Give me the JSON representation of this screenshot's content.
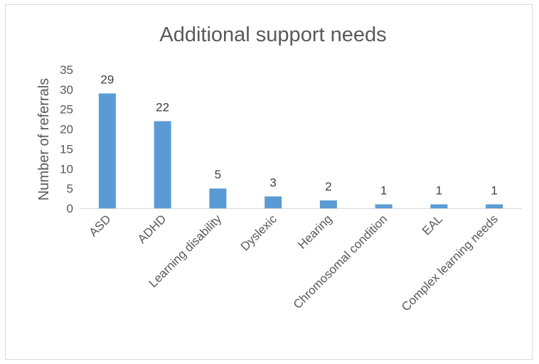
{
  "chart_data": {
    "type": "bar",
    "title": "Additional support needs",
    "xlabel": "",
    "ylabel": "Number of referrals",
    "categories": [
      "ASD",
      "ADHD",
      "Learning disability",
      "Dyslexic",
      "Hearing",
      "Chromosomal condition",
      "EAL",
      "Complex learning needs"
    ],
    "values": [
      29,
      22,
      5,
      3,
      2,
      1,
      1,
      1
    ],
    "data_labels": [
      "29",
      "22",
      "5",
      "3",
      "2",
      "1",
      "1",
      "1"
    ],
    "ylim": [
      0,
      35
    ],
    "yticks": [
      "0",
      "5",
      "10",
      "15",
      "20",
      "25",
      "30",
      "35"
    ],
    "grid": false,
    "legend": "none",
    "bar_color": "#5b9bd5"
  }
}
